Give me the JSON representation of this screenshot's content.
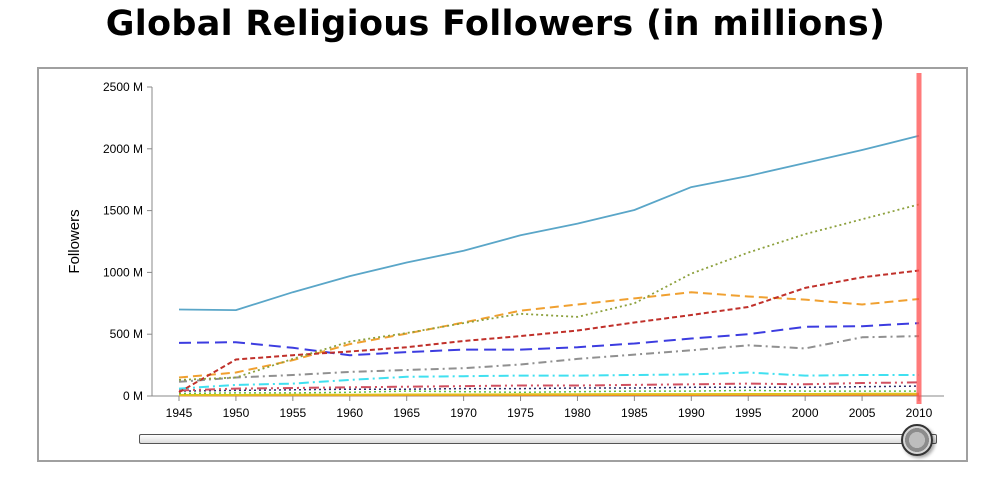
{
  "title": "Global Religious Followers (in millions)",
  "chart_data": {
    "type": "line",
    "title": "Global Religious Followers (in millions)",
    "xlabel": "",
    "ylabel": "Followers",
    "ylim": [
      0,
      2500
    ],
    "yticks": [
      0,
      500,
      1000,
      1500,
      2000,
      2500
    ],
    "ytick_labels": [
      "0 M",
      "500 M",
      "1000 M",
      "1500 M",
      "2000 M",
      "2500 M"
    ],
    "x": [
      1945,
      1950,
      1955,
      1960,
      1965,
      1970,
      1975,
      1980,
      1985,
      1990,
      1995,
      2000,
      2005,
      2010
    ],
    "grid": false,
    "legend": "none",
    "series": [
      {
        "color": "#5aa6c8",
        "dash": "",
        "width": 1.8,
        "values": [
          700,
          695,
          840,
          970,
          1080,
          1175,
          1300,
          1395,
          1505,
          1690,
          1780,
          1885,
          1990,
          2105
        ]
      },
      {
        "color": "#8ca03c",
        "dash": "2,3",
        "width": 1.8,
        "values": [
          130,
          150,
          300,
          440,
          510,
          590,
          665,
          640,
          750,
          990,
          1160,
          1310,
          1430,
          1550
        ]
      },
      {
        "color": "#c0302a",
        "dash": "5,3",
        "width": 2,
        "values": [
          30,
          295,
          330,
          360,
          395,
          445,
          485,
          530,
          595,
          655,
          720,
          875,
          960,
          1015
        ]
      },
      {
        "color": "#f0a030",
        "dash": "9,5",
        "width": 2,
        "values": [
          150,
          190,
          290,
          420,
          505,
          595,
          690,
          740,
          790,
          840,
          805,
          780,
          740,
          785
        ]
      },
      {
        "color": "#3c3ce0",
        "dash": "12,6",
        "width": 2,
        "values": [
          430,
          435,
          390,
          330,
          355,
          375,
          375,
          395,
          425,
          465,
          500,
          560,
          565,
          590
        ]
      },
      {
        "color": "#909090",
        "dash": "8,4,2,4",
        "width": 2,
        "values": [
          115,
          150,
          170,
          195,
          210,
          225,
          255,
          300,
          335,
          370,
          410,
          385,
          475,
          485
        ]
      },
      {
        "color": "#40e0f0",
        "dash": "10,4,2,4",
        "width": 2,
        "values": [
          60,
          90,
          100,
          130,
          155,
          160,
          165,
          165,
          170,
          175,
          190,
          165,
          170,
          170
        ]
      },
      {
        "color": "#d05060",
        "dash": "10,4,2,4,2,4",
        "width": 2,
        "values": [
          45,
          60,
          65,
          70,
          75,
          80,
          85,
          85,
          90,
          95,
          100,
          95,
          105,
          110
        ]
      },
      {
        "color": "#2a2a6a",
        "dash": "2,3",
        "width": 1.5,
        "values": [
          40,
          45,
          50,
          55,
          55,
          60,
          60,
          65,
          65,
          70,
          70,
          70,
          75,
          80
        ]
      },
      {
        "color": "#60c040",
        "dash": "2,3",
        "width": 1.5,
        "values": [
          20,
          25,
          25,
          30,
          40,
          35,
          30,
          35,
          40,
          40,
          45,
          40,
          40,
          40
        ]
      },
      {
        "color": "#e0c020",
        "dash": "",
        "width": 2,
        "values": [
          8,
          8,
          10,
          10,
          12,
          12,
          14,
          14,
          15,
          15,
          16,
          16,
          18,
          18
        ]
      },
      {
        "color": "#f08020",
        "dash": "",
        "width": 1.5,
        "values": [
          3,
          3,
          4,
          4,
          5,
          5,
          5,
          6,
          6,
          6,
          7,
          7,
          7,
          8
        ]
      }
    ],
    "marker": {
      "x": 2010,
      "color": "#ff4d4d"
    },
    "slider": {
      "value": 2010
    }
  }
}
